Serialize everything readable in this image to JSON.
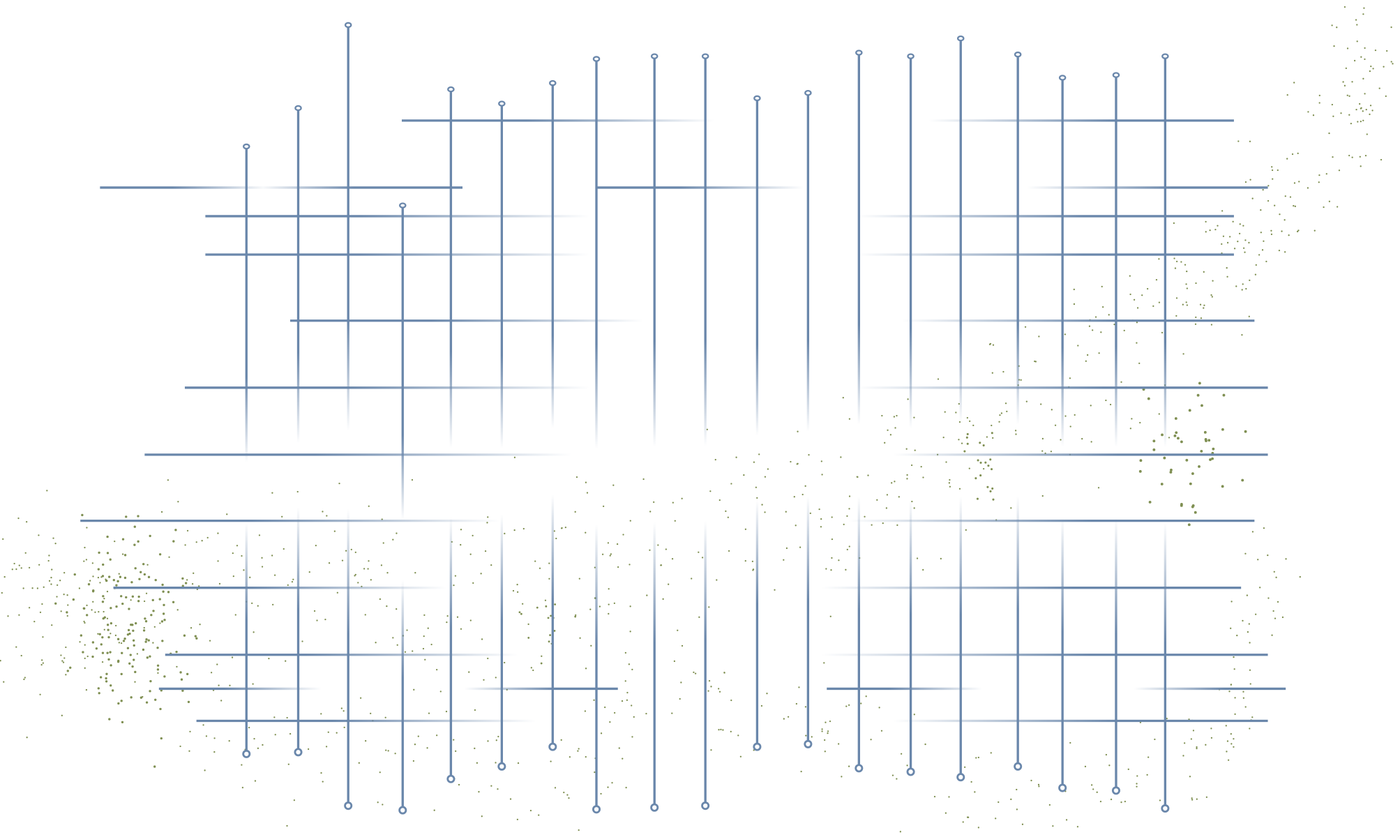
{
  "colors": {
    "background": "#ffffff",
    "line": "#6a87ab",
    "dot": "#7f8f52"
  }
}
